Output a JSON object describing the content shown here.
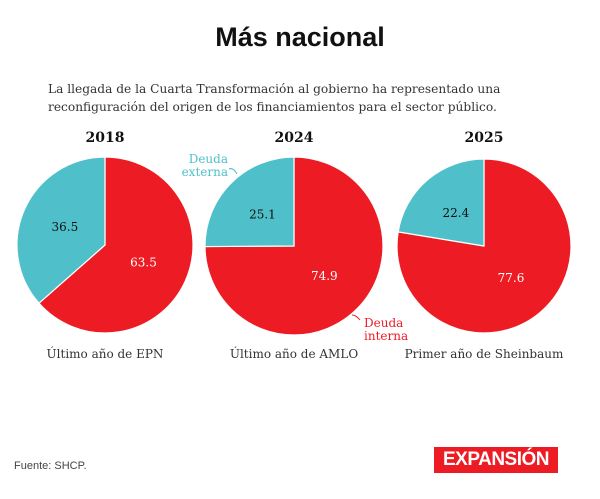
{
  "title": "Más nacional",
  "subtitle": "La llegada de la Cuarta Transformación al gobierno ha representado una reconfiguración del origen de los financiamientos para el sector público.",
  "source": "Fuente: SHCP.",
  "logo": "EXPANSIÓN",
  "colors": {
    "externa": "#4fc0c9",
    "interna": "#ed1c24"
  },
  "chart_data": {
    "type": "pie",
    "legend": {
      "externa": "Deuda externa",
      "interna": "Deuda interna"
    },
    "charts": [
      {
        "year": "2018",
        "caption": "Último año de EPN",
        "values": {
          "externa": 36.5,
          "interna": 63.5
        }
      },
      {
        "year": "2024",
        "caption": "Último año de AMLO",
        "values": {
          "externa": 25.1,
          "interna": 74.9
        }
      },
      {
        "year": "2025",
        "caption": "Primer año de Sheinbaum",
        "values": {
          "externa": 22.4,
          "interna": 77.6
        }
      }
    ]
  }
}
